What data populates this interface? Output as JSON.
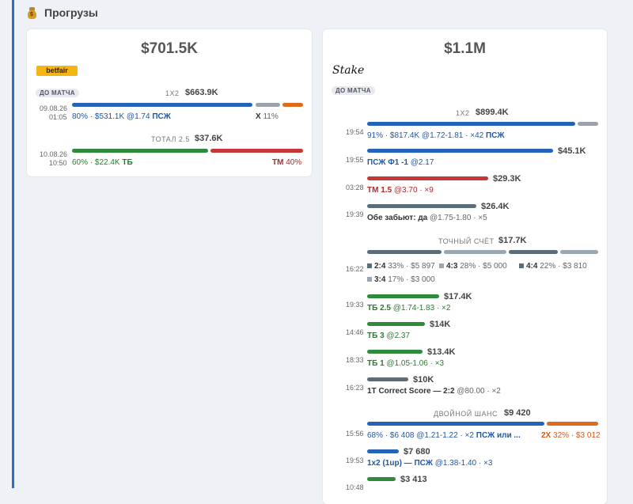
{
  "section_title": "Прогрузы",
  "left": {
    "total": "$701.5K",
    "bookmaker": "betfair",
    "tag": "ДО МАТЧА",
    "m1": {
      "market": "1X2",
      "amount": "$663.9K",
      "date": "09.08.26",
      "time": "01:05",
      "detail": "80% · $531.1K @1.74",
      "pick": "ПСЖ",
      "opp": "X",
      "opp_pct": "11%"
    },
    "m2": {
      "market": "ТОТАЛ 2.5",
      "amount": "$37.6K",
      "date": "10.08.26",
      "time": "10:50",
      "detail": "60% · $22.4K",
      "pick": "ТБ",
      "opp": "ТМ",
      "opp_pct": "40%"
    }
  },
  "right": {
    "total": "$1.1M",
    "bookmaker": "Stake",
    "tag": "ДО МАТЧА",
    "r1": {
      "market": "1X2",
      "amount": "$899.4K",
      "time": "19:54",
      "detail": "91% · $817.4K @1.72-1.81 · ×42",
      "pick": "ПСЖ"
    },
    "r2": {
      "amount": "$45.1K",
      "time": "19:55",
      "pick": "ПСЖ Ф1 -1",
      "odds": "@2.17"
    },
    "r3": {
      "amount": "$29.3K",
      "time": "03:28",
      "pick": "ТМ 1.5",
      "odds": "@3.70 · ×9"
    },
    "r4": {
      "amount": "$26.4K",
      "time": "19:39",
      "pick": "Обе забьют: да",
      "odds": "@1.75-1.80 · ×5"
    },
    "r5": {
      "market": "ТОЧНЫЙ СЧЁТ",
      "amount": "$17.7K",
      "time": "16:22",
      "s1": {
        "score": "2:4",
        "info": "33% · $5 897"
      },
      "s2": {
        "score": "4:3",
        "info": "28% · $5 000"
      },
      "s3": {
        "score": "4:4",
        "info": "22% · $3 810"
      },
      "s4": {
        "score": "3:4",
        "info": "17% · $3 000"
      }
    },
    "r6": {
      "amount": "$17.4K",
      "time": "19:33",
      "pick": "ТБ 2.5",
      "odds": "@1.74-1.83 · ×2"
    },
    "r7": {
      "amount": "$14K",
      "time": "14:46",
      "pick": "ТБ 3",
      "odds": "@2.37"
    },
    "r8": {
      "amount": "$13.4K",
      "time": "18:33",
      "pick": "ТБ 1",
      "odds": "@1.05-1.06 · ×3"
    },
    "r9": {
      "amount": "$10K",
      "time": "16:23",
      "pick": "1T Correct Score — 2:2",
      "odds": "@80.00 · ×2"
    },
    "r10": {
      "market": "ДВОЙНОЙ ШАНС",
      "amount": "$9 420",
      "time": "15:56",
      "detail": "68% · $6 408 @1.21-1.22 · ×2",
      "pick": "ПСЖ или ...",
      "opp": "2X",
      "opp_info": "32% · $3 012"
    },
    "r11": {
      "amount": "$7 680",
      "time": "19:53",
      "pick": "1x2 (1up) — ПСЖ",
      "odds": "@1.38-1.40 · ×3"
    },
    "r12": {
      "amount": "$3 413",
      "time": "10:48"
    }
  },
  "colors": {
    "accent": "#2f6cc4",
    "blue": "#2563b8",
    "green": "#2f8a3b",
    "red": "#c63838",
    "orange": "#e06a1b"
  }
}
